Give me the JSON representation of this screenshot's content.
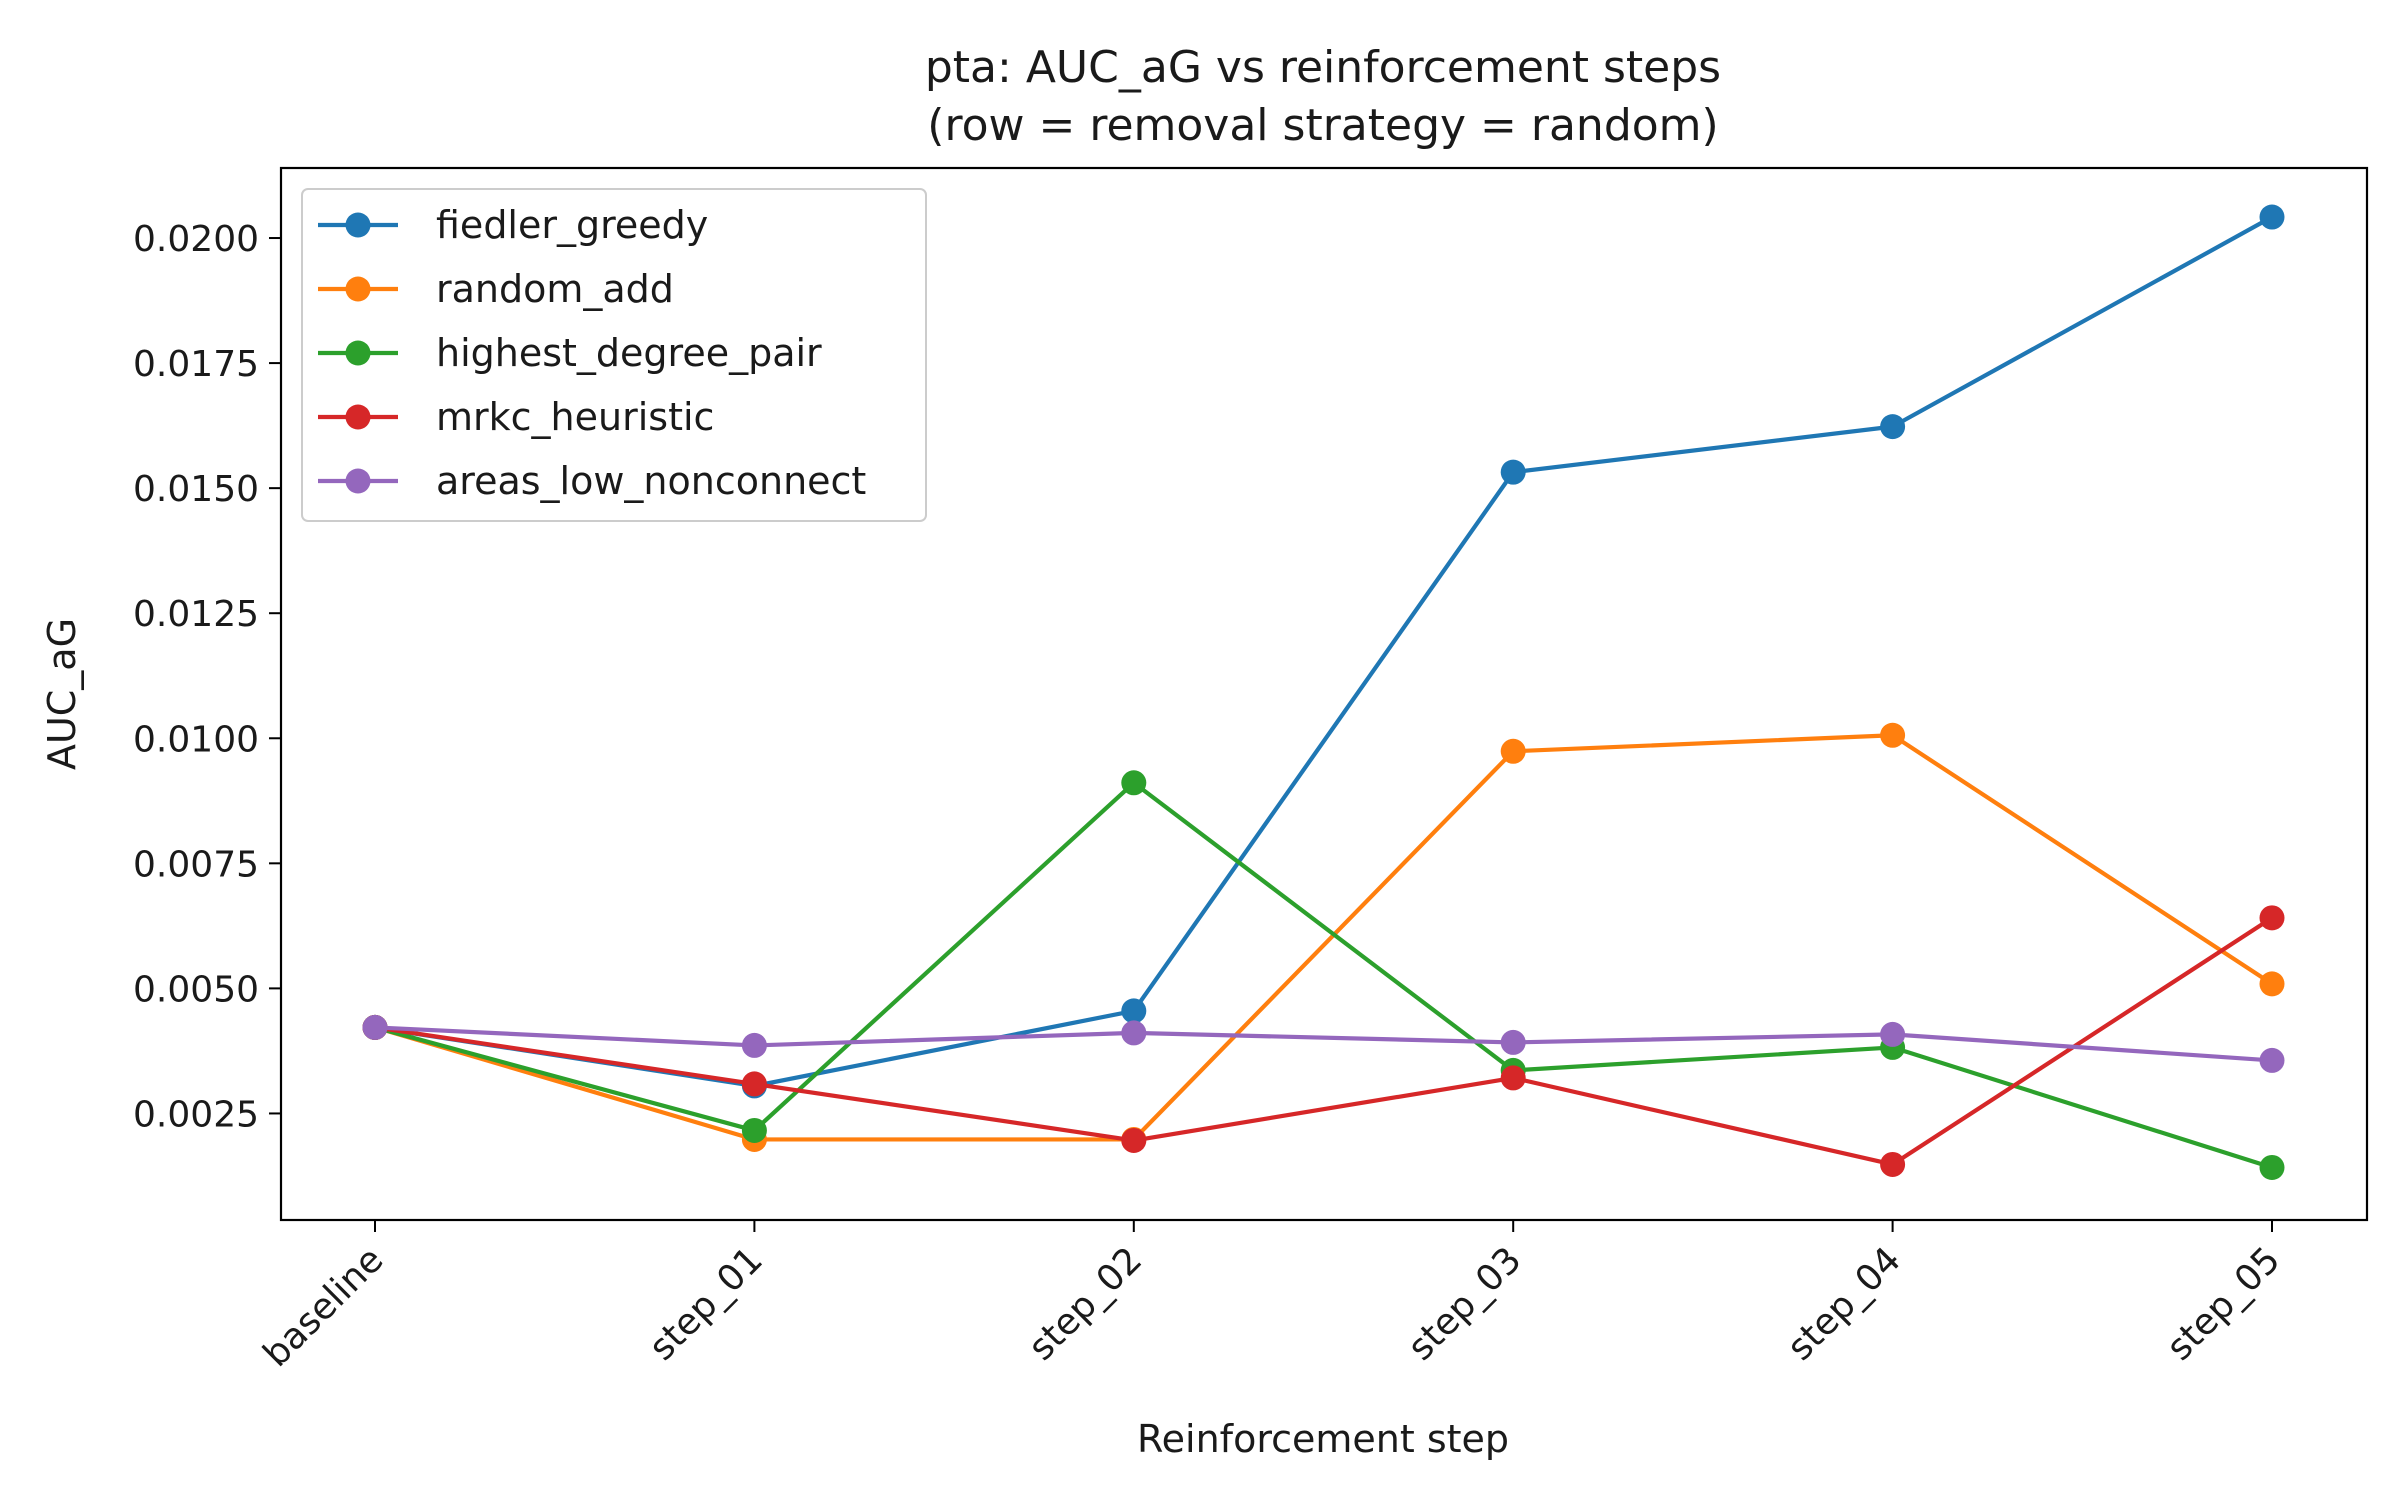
{
  "chart_data": {
    "type": "line",
    "title": "pta: AUC_aG vs reinforcement steps",
    "subtitle": "(row = removal strategy = random)",
    "xlabel": "Reinforcement step",
    "ylabel": "AUC_aG",
    "categories": [
      "baseline",
      "step_01",
      "step_02",
      "step_03",
      "step_04",
      "step_05"
    ],
    "ylim": [
      0.00037,
      0.0214
    ],
    "yticks": [
      0.0025,
      0.005,
      0.0075,
      0.01,
      0.0125,
      0.015,
      0.0175,
      0.02
    ],
    "ytick_labels": [
      "0.0025",
      "0.0050",
      "0.0075",
      "0.0100",
      "0.0125",
      "0.0150",
      "0.0175",
      "0.0200"
    ],
    "grid": false,
    "legend_position": "top-left",
    "series": [
      {
        "name": "fiedler_greedy",
        "color": "#1f77b4",
        "values": [
          0.00422,
          0.00305,
          0.00455,
          0.01532,
          0.01623,
          0.02042
        ]
      },
      {
        "name": "random_add",
        "color": "#ff7f0e",
        "values": [
          0.00422,
          0.00198,
          0.00198,
          0.00974,
          0.01006,
          0.00509
        ]
      },
      {
        "name": "highest_degree_pair",
        "color": "#2ca02c",
        "values": [
          0.00422,
          0.00216,
          0.00911,
          0.00336,
          0.00382,
          0.00142
        ]
      },
      {
        "name": "mrkc_heuristic",
        "color": "#d62728",
        "values": [
          0.00422,
          0.00309,
          0.00196,
          0.00321,
          0.00148,
          0.00641
        ]
      },
      {
        "name": "areas_low_nonconnect",
        "color": "#9467bd",
        "values": [
          0.00422,
          0.00386,
          0.00411,
          0.00392,
          0.00408,
          0.00356
        ]
      }
    ]
  }
}
